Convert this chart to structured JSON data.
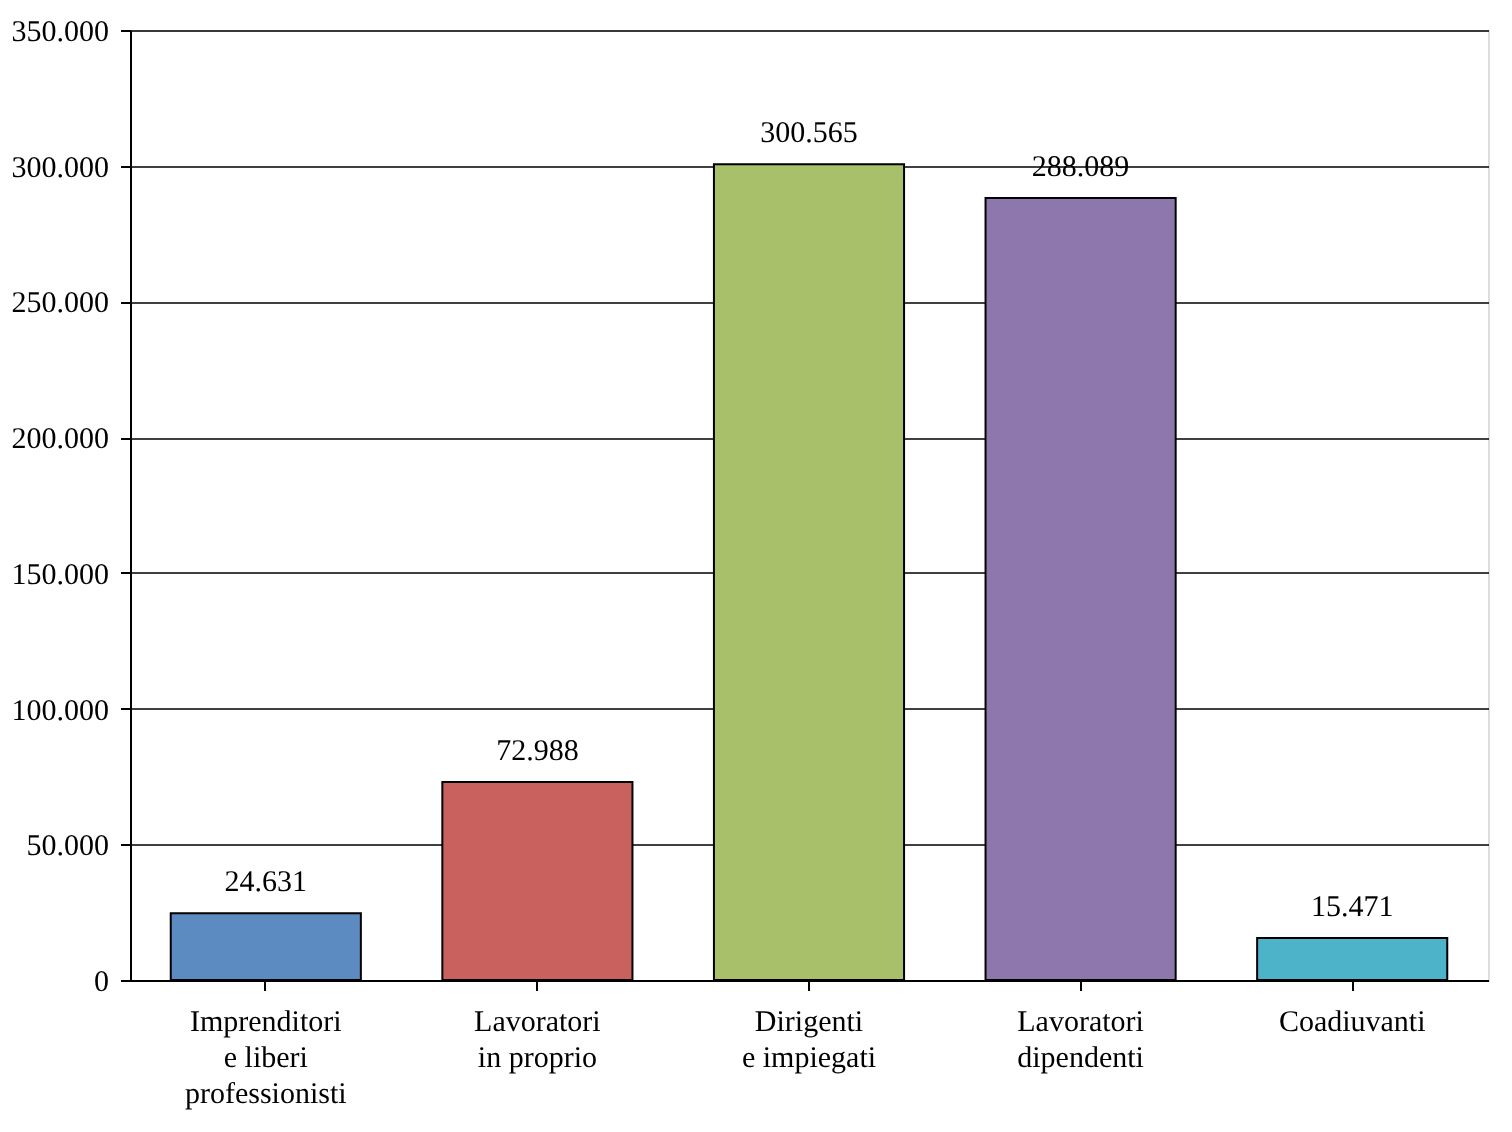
{
  "chart_data": {
    "type": "bar",
    "categories": [
      "Imprenditori\ne liberi\nprofessionisti",
      "Lavoratori\nin proprio",
      "Dirigenti\ne impiegati",
      "Lavoratori\ndipendenti",
      "Coadiuvanti"
    ],
    "values": [
      24631,
      72988,
      300565,
      288089,
      15471
    ],
    "colors": [
      "#5b8bc0",
      "#c9625e",
      "#a8c06a",
      "#8d77ad",
      "#4cb3c8"
    ],
    "value_labels": [
      "24.631",
      "72.988",
      "300.565",
      "288.089",
      "15.471"
    ],
    "ylim": [
      0,
      350000
    ],
    "yticks": [
      0,
      {
        "value": 50000,
        "label": "50.000"
      },
      {
        "value": 100000,
        "label": "100.000"
      },
      {
        "value": 150000,
        "label": "150.000"
      },
      {
        "value": 200000,
        "label": "200.000"
      },
      {
        "value": 250000,
        "label": "250.000"
      },
      {
        "value": 300000,
        "label": "300.000"
      },
      {
        "value": 350000,
        "label": "350.000"
      }
    ],
    "grid": "y"
  }
}
